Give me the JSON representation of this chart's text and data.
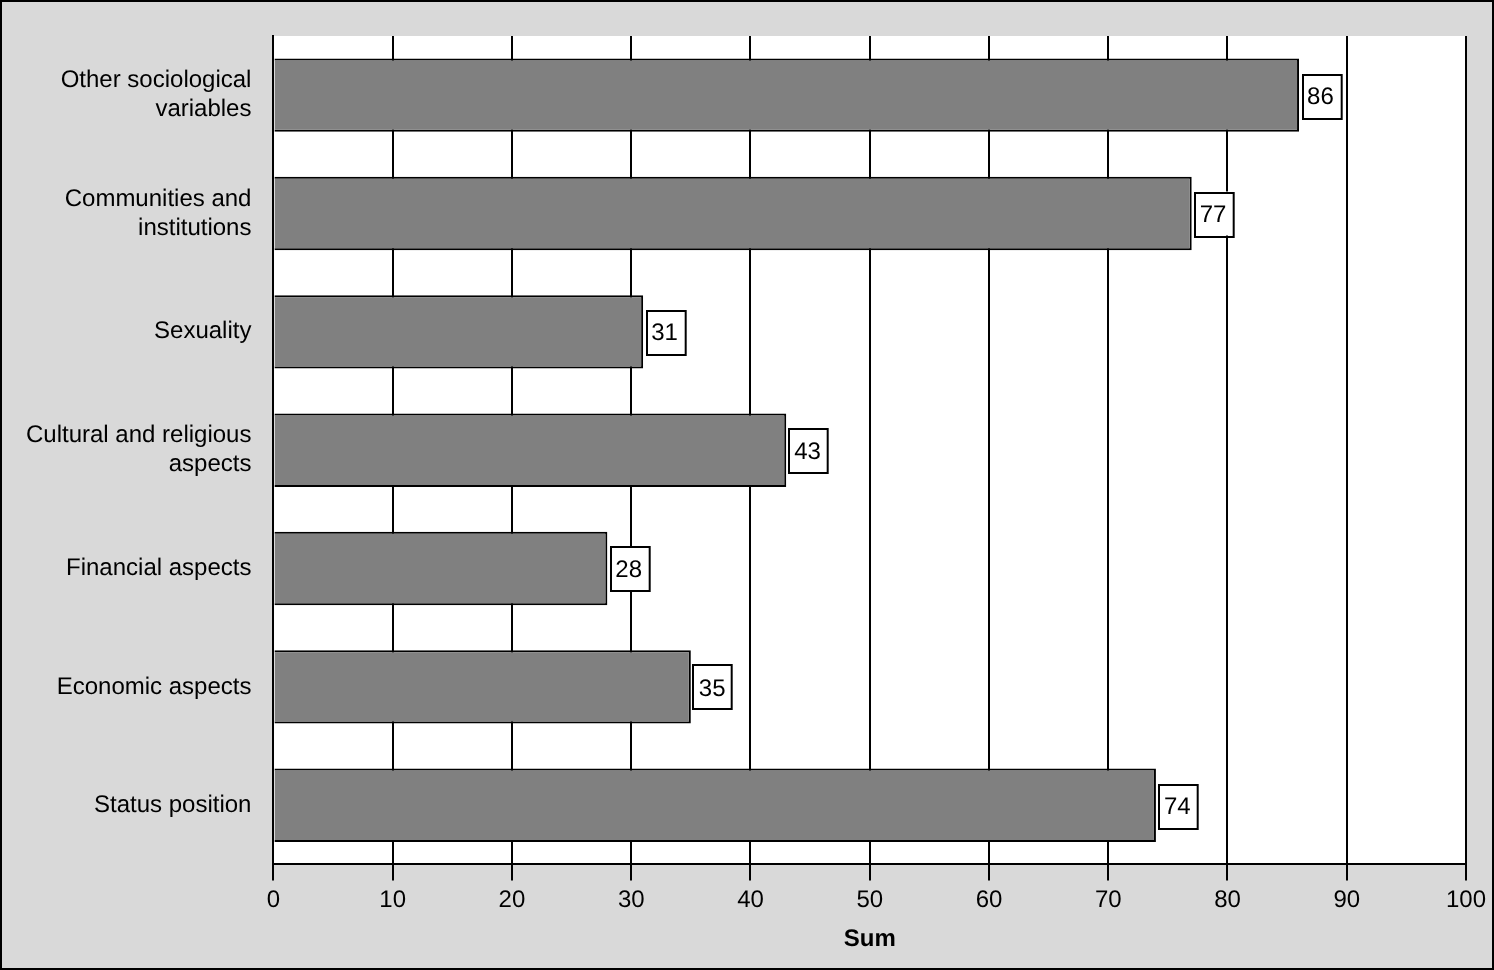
{
  "chart_data": {
    "type": "bar",
    "orientation": "horizontal",
    "xlabel": "Sum",
    "categories": [
      "Other sociological variables",
      "Communities and institutions",
      "Sexuality",
      "Cultural and religious aspects",
      "Financial aspects",
      "Economic aspects",
      "Status position"
    ],
    "values": [
      86,
      77,
      31,
      43,
      28,
      35,
      74
    ],
    "color": "#808080",
    "xlim": [
      0,
      100
    ],
    "xticks": [
      0,
      10,
      20,
      30,
      40,
      50,
      60,
      70,
      80,
      90,
      100
    ],
    "grid": "x",
    "data_labels": true,
    "legend": false
  }
}
